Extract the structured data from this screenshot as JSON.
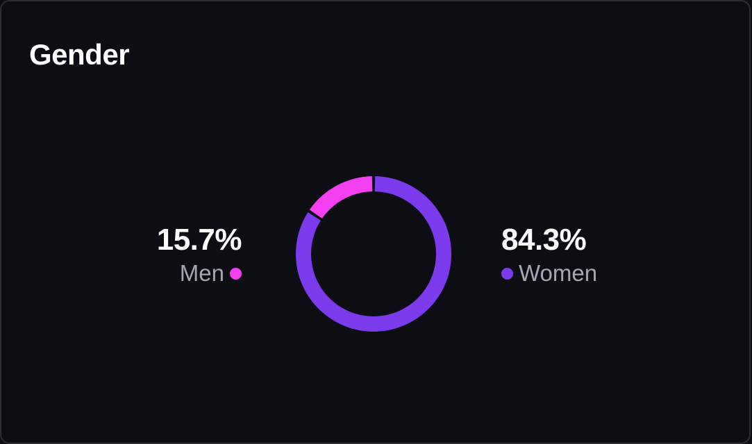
{
  "card": {
    "title": "Gender"
  },
  "chart_data": {
    "type": "pie",
    "title": "Gender",
    "donut": true,
    "slices": [
      {
        "name": "Men",
        "value": 15.7,
        "label": "15.7%",
        "color": "#f43ff1"
      },
      {
        "name": "Women",
        "value": 84.3,
        "label": "84.3%",
        "color": "#7c3aed"
      }
    ]
  }
}
